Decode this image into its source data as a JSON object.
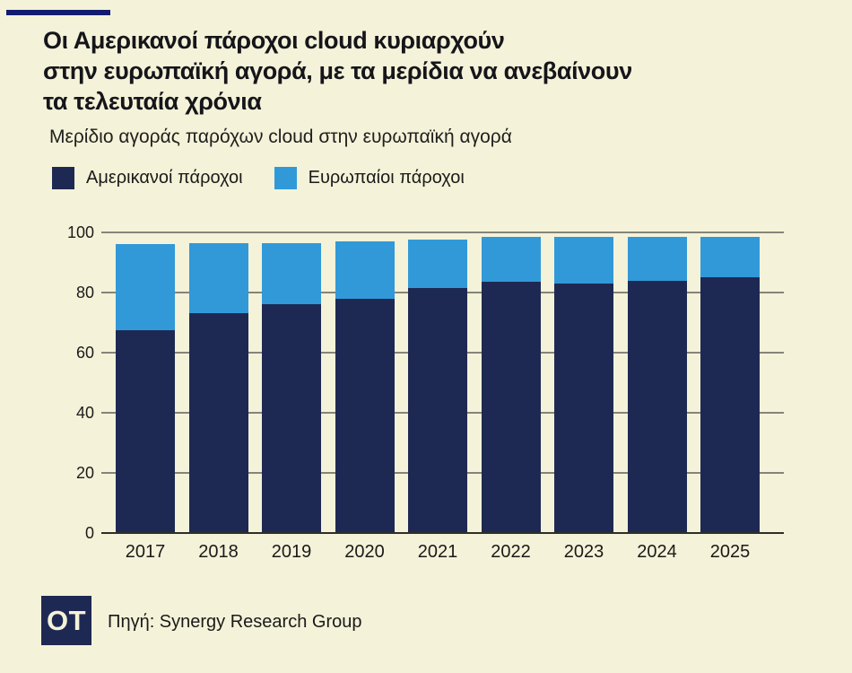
{
  "page": {
    "background_color": "#f4f2d8"
  },
  "header": {
    "accent_color": "#131b6f",
    "title_lines": [
      "Οι Αμερικανοί πάροχοι cloud κυριαρχούν",
      "στην ευρωπαϊκή αγορά, με τα μερίδια να ανεβαίνουν",
      "τα τελευταία χρόνια"
    ],
    "subtitle": "Μερίδιο αγοράς παρόχων cloud στην ευρωπαϊκή αγορά"
  },
  "legend": {
    "items": [
      {
        "label": "Αμερικανοί πάροχοι",
        "color": "#1e2953"
      },
      {
        "label": "Ευρωπαίοι πάροχοι",
        "color": "#3199d8"
      }
    ]
  },
  "chart_data": {
    "type": "bar",
    "stacked": true,
    "title": "Μερίδιο αγοράς παρόχων cloud στην ευρωπαϊκή αγορά",
    "categories": [
      "2017",
      "2018",
      "2019",
      "2020",
      "2021",
      "2022",
      "2023",
      "2024",
      "2025"
    ],
    "series": [
      {
        "name": "Αμερικανοί πάροχοι",
        "color": "#1e2953",
        "values": [
          67.5,
          73,
          76,
          78,
          81.5,
          83.5,
          83,
          84,
          85
        ]
      },
      {
        "name": "Ευρωπαίοι πάροχοι",
        "color": "#3199d8",
        "values": [
          28.5,
          23.5,
          20.5,
          19,
          16,
          15,
          15.5,
          14.5,
          13.5
        ]
      }
    ],
    "xlabel": "",
    "ylabel": "",
    "ylim": [
      0,
      100
    ],
    "yticks": [
      0,
      20,
      40,
      60,
      80,
      100
    ],
    "grid": true,
    "gridline_color": "#85847b",
    "axis_line_color": "#2e2e29",
    "legend_position": "top"
  },
  "footer": {
    "logo_text": "OT",
    "logo_color": "#1e2953",
    "source": "Πηγή: Synergy Research Group"
  }
}
